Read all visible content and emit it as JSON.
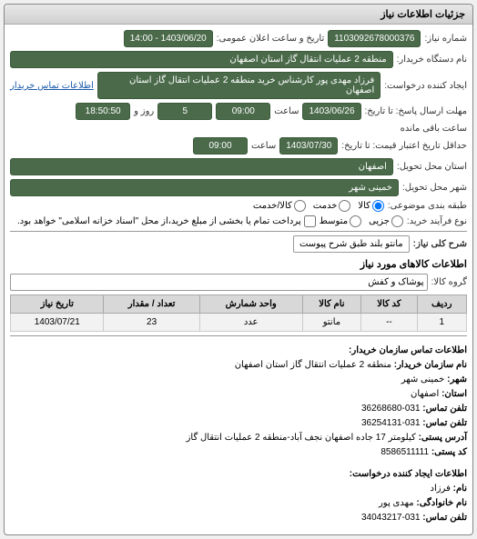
{
  "panel": {
    "title": "جزئیات اطلاعات نیاز"
  },
  "header": {
    "need_no_label": "شماره نیاز:",
    "need_no": "1103092678000376",
    "announce_label": "تاریخ و ساعت اعلان عمومی:",
    "announce": "1403/06/20 - 14:00",
    "buyer_label": "نام دستگاه خریدار:",
    "buyer": "منطقه 2 عملیات انتقال گاز استان اصفهان",
    "requester_label": "ایجاد کننده درخواست:",
    "requester": "فرزاد مهدی پور کارشناس خرید منطقه 2 عملیات انتقال گاز استان اصفهان",
    "contact_link": "اطلاعات تماس خریدار"
  },
  "deadline": {
    "reply_label": "مهلت ارسال پاسخ: تا تاریخ:",
    "reply_date": "1403/06/26",
    "time_label": "ساعت",
    "reply_time": "09:00",
    "days": "5",
    "days_label": "روز و",
    "remain_time": "18:50:50",
    "remain_label": "ساعت باقی مانده",
    "validity_label": "حداقل تاریخ اعتبار قیمت: تا تاریخ:",
    "validity_date": "1403/07/30",
    "validity_time": "09:00"
  },
  "location": {
    "province_label": "استان محل تحویل:",
    "province": "اصفهان",
    "city_label": "شهر محل تحویل:",
    "city": "خمینی شهر"
  },
  "subject": {
    "type_label": "طبقه بندی موضوعی:",
    "opt_goods": "کالا",
    "opt_service": "خدمت",
    "opt_goods_service": "کالا/خدمت"
  },
  "process": {
    "type_label": "نوع فرآیند خرید:",
    "opt_partial": "جزیی",
    "opt_medium": "متوسط",
    "note_label": "",
    "note": "پرداخت تمام یا بخشی از مبلغ خرید،از محل \"اسناد خزانه اسلامی\" خواهد بود."
  },
  "need_desc": {
    "label": "شرح کلی نیاز:",
    "value": "مانتو بلند طبق شرح پیوست"
  },
  "items_section": {
    "title": "اطلاعات کالاهای مورد نیاز",
    "group_label": "گروه کالا:",
    "group_value": "پوشاک و کفش",
    "columns": [
      "ردیف",
      "کد کالا",
      "نام کالا",
      "واحد شمارش",
      "تعداد / مقدار",
      "تاریخ نیاز"
    ],
    "rows": [
      [
        "1",
        "--",
        "مانتو",
        "عدد",
        "23",
        "1403/07/21"
      ]
    ]
  },
  "contact_buyer": {
    "title": "اطلاعات تماس سازمان خریدار:",
    "org_label": "نام سازمان خریدار:",
    "org": "منطقه 2 عملیات انتقال گاز استان اصفهان",
    "city_label": "شهر:",
    "city": "خمینی شهر",
    "province_label": "استان:",
    "province": "اصفهان",
    "phone_label": "تلفن تماس:",
    "phone": "031-36268680",
    "fax_label": "تلفن تماس:",
    "fax": "031-36254131",
    "address_label": "آدرس پستی:",
    "address": "کیلومتر 17 جاده اصفهان نجف آباد-منطقه 2 عملیات انتقال گاز",
    "postal_label": "کد پستی:",
    "postal": "8586511111"
  },
  "contact_requester": {
    "title": "اطلاعات ایجاد کننده درخواست:",
    "fname_label": "نام:",
    "fname": "فرزاد",
    "lname_label": "نام خانوادگی:",
    "lname": "مهدی پور",
    "phone_label": "تلفن تماس:",
    "phone": "031-34043217"
  }
}
